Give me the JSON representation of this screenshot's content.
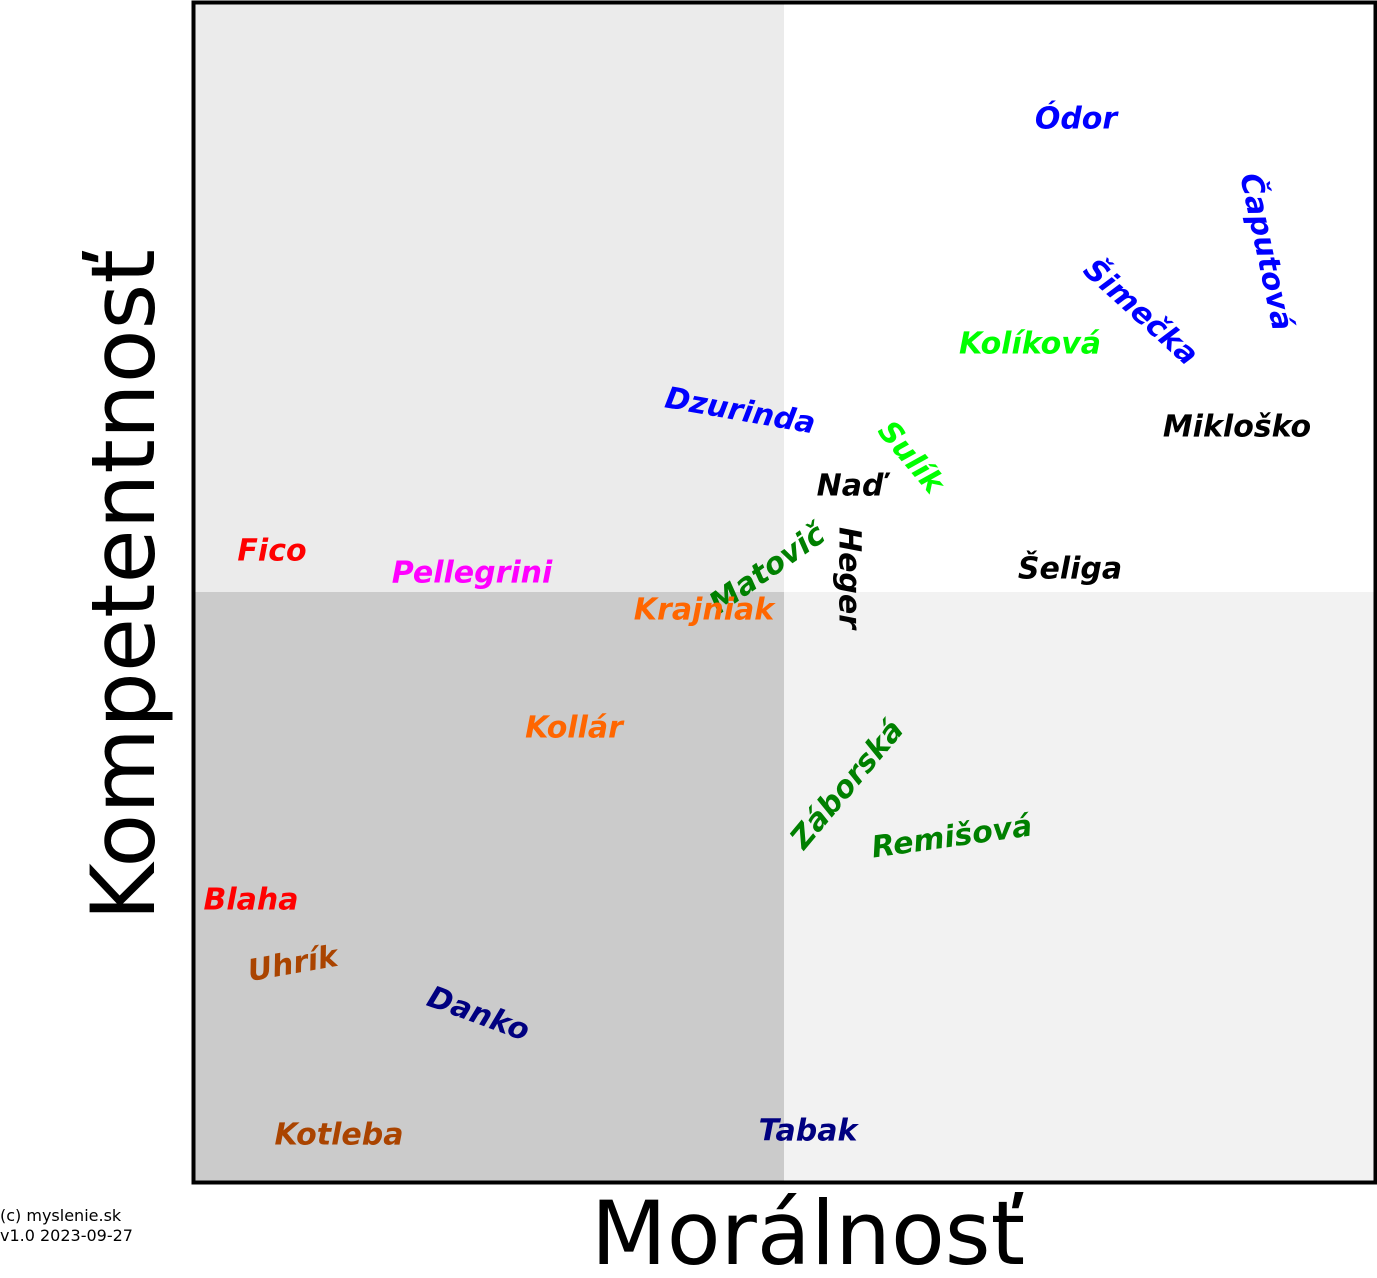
{
  "axes": {
    "x_label": "Morálnosť",
    "y_label": "Kompetentnosť"
  },
  "nodes": [
    {
      "label": "Ódor"
    },
    {
      "label": "Čaputová"
    },
    {
      "label": "Šimečka"
    },
    {
      "label": "Kolíková"
    },
    {
      "label": "Dzurinda"
    },
    {
      "label": "Sulík"
    },
    {
      "label": "Mikloško"
    },
    {
      "label": "Naď"
    },
    {
      "label": "Heger"
    },
    {
      "label": "Matovič"
    },
    {
      "label": "Šeliga"
    },
    {
      "label": "Fico"
    },
    {
      "label": "Pellegrini"
    },
    {
      "label": "Krajniak"
    },
    {
      "label": "Kollár"
    },
    {
      "label": "Záborská"
    },
    {
      "label": "Remišová"
    },
    {
      "label": "Blaha"
    },
    {
      "label": "Uhrík"
    },
    {
      "label": "Danko"
    },
    {
      "label": "Kotleba"
    },
    {
      "label": "Tabak"
    }
  ],
  "footer": {
    "line1": "(c) myslenie.sk",
    "line2": "v1.0 2023-09-27"
  }
}
